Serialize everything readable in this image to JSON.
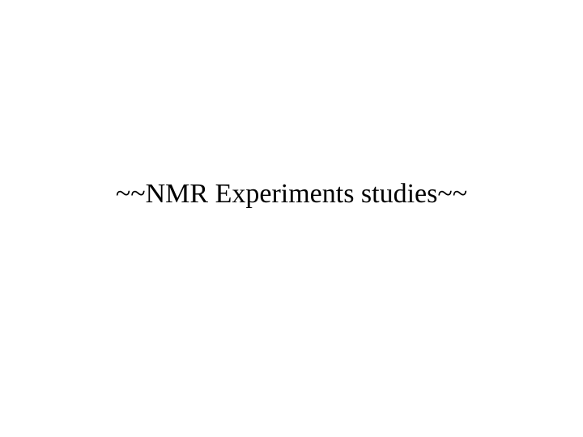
{
  "slide": {
    "title": "~~NMR Experiments studies~~",
    "title_fontsize": 34,
    "title_color": "#000000",
    "title_weight": 400,
    "background_color": "#ffffff",
    "font_family": "Georgia, serif"
  }
}
